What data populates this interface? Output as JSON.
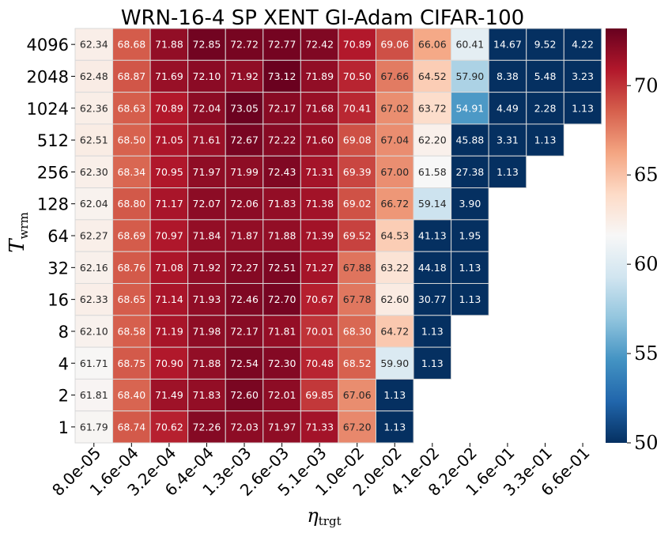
{
  "chart_data": {
    "type": "heatmap",
    "title": "WRN-16-4 SP XENT GI-Adam CIFAR-100",
    "xlabel": "η",
    "xlabel_sub": "trgt",
    "ylabel": "T",
    "ylabel_sub": "wrm",
    "x_categories": [
      "8.0e-05",
      "1.6e-04",
      "3.2e-04",
      "6.4e-04",
      "1.3e-03",
      "2.6e-03",
      "5.1e-03",
      "1.0e-02",
      "2.0e-02",
      "4.1e-02",
      "8.2e-02",
      "1.6e-01",
      "3.3e-01",
      "6.6e-01"
    ],
    "y_categories": [
      "4096",
      "2048",
      "1024",
      "512",
      "256",
      "128",
      "64",
      "32",
      "16",
      "8",
      "4",
      "2",
      "1"
    ],
    "values": [
      [
        62.34,
        68.68,
        71.88,
        72.85,
        72.72,
        72.77,
        72.42,
        70.89,
        69.06,
        66.06,
        60.41,
        14.67,
        9.52,
        4.22
      ],
      [
        62.48,
        68.87,
        71.69,
        72.1,
        71.92,
        73.12,
        71.89,
        70.5,
        67.66,
        64.52,
        57.9,
        8.38,
        5.48,
        3.23
      ],
      [
        62.36,
        68.63,
        70.89,
        72.04,
        73.05,
        72.17,
        71.68,
        70.41,
        67.02,
        63.72,
        54.91,
        4.49,
        2.28,
        1.13
      ],
      [
        62.51,
        68.5,
        71.05,
        71.61,
        72.67,
        72.22,
        71.6,
        69.08,
        67.04,
        62.2,
        45.88,
        3.31,
        1.13,
        null
      ],
      [
        62.3,
        68.34,
        70.95,
        71.97,
        71.99,
        72.43,
        71.31,
        69.39,
        67.0,
        61.58,
        27.38,
        1.13,
        null,
        null
      ],
      [
        62.04,
        68.8,
        71.17,
        72.07,
        72.06,
        71.83,
        71.38,
        69.02,
        66.72,
        59.14,
        3.9,
        null,
        null,
        null
      ],
      [
        62.27,
        68.69,
        70.97,
        71.84,
        71.87,
        71.88,
        71.39,
        69.52,
        64.53,
        41.13,
        1.95,
        null,
        null,
        null
      ],
      [
        62.16,
        68.76,
        71.08,
        71.92,
        72.27,
        72.51,
        71.27,
        67.88,
        63.22,
        44.18,
        1.13,
        null,
        null,
        null
      ],
      [
        62.33,
        68.65,
        71.14,
        71.93,
        72.46,
        72.7,
        70.67,
        67.78,
        62.6,
        30.77,
        1.13,
        null,
        null,
        null
      ],
      [
        62.1,
        68.58,
        71.19,
        71.98,
        72.17,
        71.81,
        70.01,
        68.3,
        64.72,
        1.13,
        null,
        null,
        null,
        null
      ],
      [
        61.71,
        68.75,
        70.9,
        71.88,
        72.54,
        72.3,
        70.48,
        68.52,
        59.9,
        1.13,
        null,
        null,
        null,
        null
      ],
      [
        61.81,
        68.4,
        71.49,
        71.83,
        72.6,
        72.01,
        69.85,
        67.06,
        1.13,
        null,
        null,
        null,
        null,
        null
      ],
      [
        61.79,
        68.74,
        70.62,
        72.26,
        72.03,
        71.97,
        71.33,
        67.2,
        1.13,
        null,
        null,
        null,
        null,
        null
      ]
    ],
    "colormap": "RdBu_r",
    "color_range": [
      50,
      73.2
    ],
    "colorbar_ticks": [
      50,
      55,
      60,
      65,
      70
    ],
    "grid": true,
    "colors": {
      "low": "#053061",
      "high": "#67001f",
      "mid": "#f7f7f7",
      "cell_border": "#d9d9d9"
    }
  }
}
